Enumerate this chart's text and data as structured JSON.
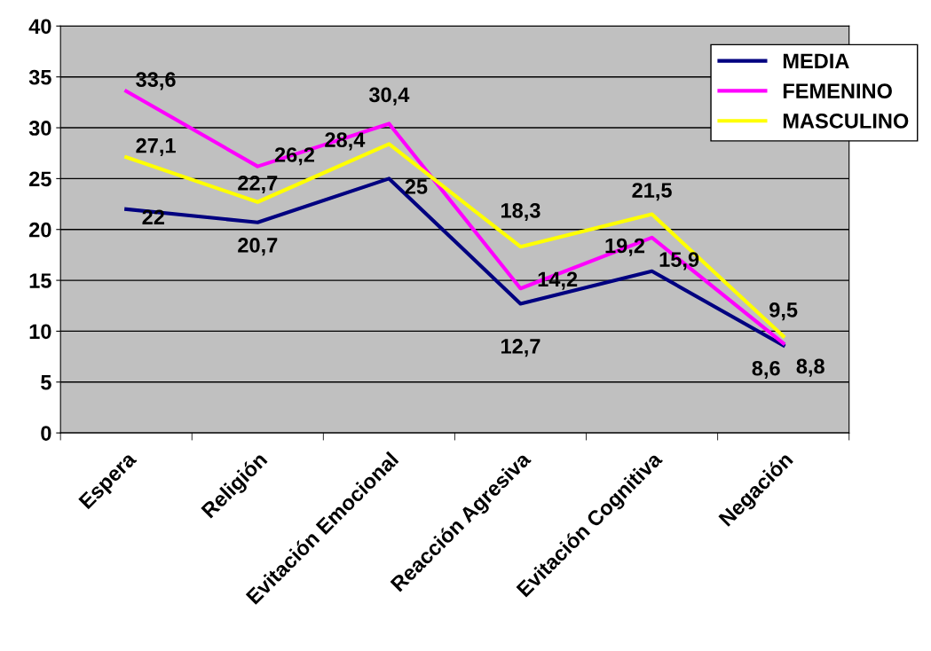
{
  "chart_data": {
    "type": "line",
    "categories": [
      "Espera",
      "Religión",
      "Evitación Emocional",
      "Reacción Agresiva",
      "Evitación Cognitiva",
      "Negación"
    ],
    "series": [
      {
        "name": "MEDIA",
        "color": "#000080",
        "values": [
          22,
          20.7,
          25,
          12.7,
          15.9,
          8.6
        ],
        "value_labels": [
          "22",
          "20,7",
          "25",
          "12,7",
          "15,9",
          "8,6"
        ]
      },
      {
        "name": "FEMENINO",
        "color": "#ff00ff",
        "values": [
          33.6,
          26.2,
          30.4,
          14.2,
          19.2,
          8.8
        ],
        "value_labels": [
          "33,6",
          "26,2",
          "30,4",
          "14,2",
          "19,2",
          "8,8"
        ]
      },
      {
        "name": "MASCULINO",
        "color": "#ffff00",
        "values": [
          27.1,
          22.7,
          28.4,
          18.3,
          21.5,
          9.5
        ],
        "value_labels": [
          "27,1",
          "22,7",
          "28,4",
          "18,3",
          "21,5",
          "9,5"
        ]
      }
    ],
    "ylim": [
      0,
      40
    ],
    "yticks": [
      0,
      5,
      10,
      15,
      20,
      25,
      30,
      35,
      40
    ],
    "grid": "y",
    "legend": "top right",
    "marker": "none",
    "line_style": "solid"
  }
}
